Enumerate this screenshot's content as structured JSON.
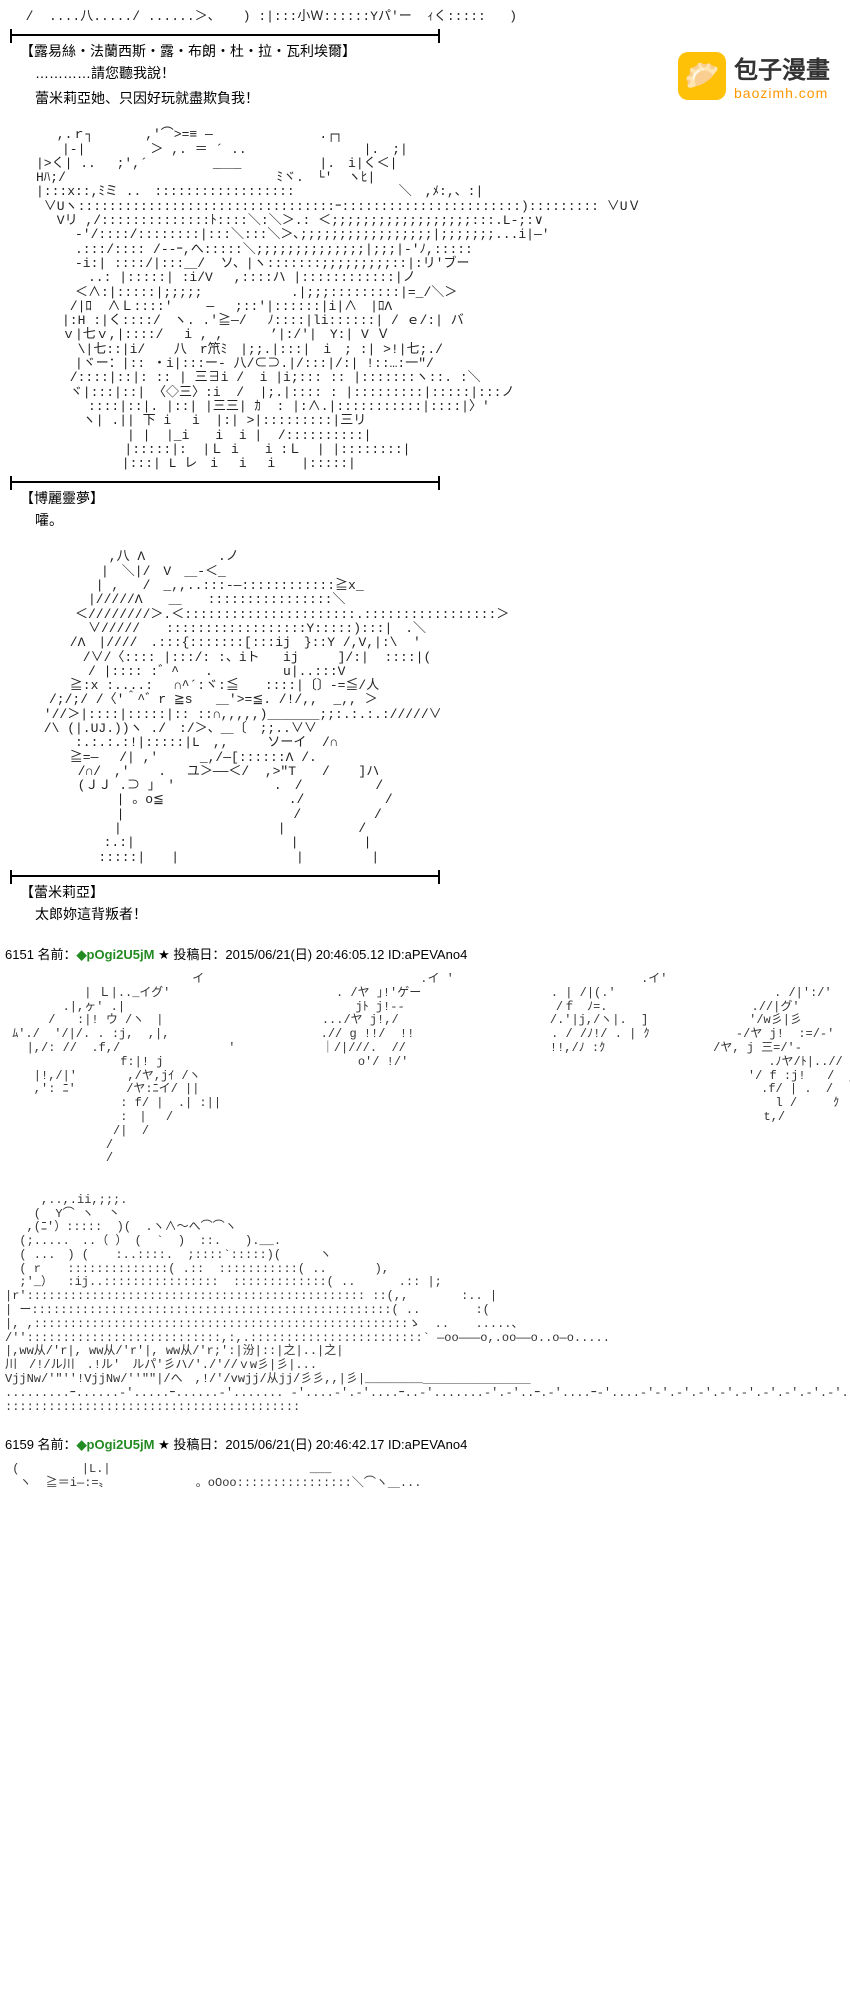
{
  "watermark": {
    "title": "包子漫畫",
    "subtitle": "baozimh.com",
    "icon": "🥟"
  },
  "panels": [
    {
      "ascii_top": "  /  ....八...../ ......＞、　  ) :|:::小Ｗ::::::Yパ'ー  ｨく:::::   )",
      "character": "【露易絲・法蘭西斯・露・布朗・杜・拉・瓦利埃爾】",
      "lines": [
        "…………請您聽我說！",
        "蕾米莉亞她、只因好玩就盡欺負我！"
      ]
    },
    {
      "ascii": "　　　 ,.ｒ┐　　　　,'⌒>=≡ ―　　　　 　　　 .┌┐\n　　　　|-|　　　　　＞ ,. ＝ ´ ..　　　　　　　　　|.　;|\n　　|>く| .. 　;',´　　　　　_＿_　　　　　　|.　i|く＜|\n　　Hﾊ;/　　　　　　　　　　　　　　　  ﾐヾ.　└'  ヽﾋ|\n　　|:::x::,ﾐミ ..　::::::::::::::::::　　　　　　　　＼　,ﾒ:,、:|\n　　 ∨Uヽ:::::::::::::::::::::::::::::::::ｰ:::::::::::::::::::::::)::::::::: ∨UＶ\n　　　 Vリ ,/::::::::::::::ﾄ::::＼:＼＞.: ＜;;;;;;;;;;;;;;;;;;:::.L-;:∨\n　　　　　-'/::::/::::::::|:::＼:::＼＞､;;;;;;;;;;;;;;;;;|;;;;;;;...i|―'\n　　　　　.:::/:::: /--ｰ,へ:::::＼;;;;;;;;;;;;;;|;;;|-'ﾉ,::::: \n　　　　　-i:| ::::/|:::＿/  ソ、|ヽ:::::::;;;;;;;;;::|:リ'ブー\n　　　　　　..: |:::::| :i/V　 ,::::ハ |::::::::::::|ノ\n　　　　　＜∧:|:::::|;;;;;　　 　 　　 .|;;;:::::::::|=_/＼＞\n　　　　 /|ﾛ  ∧Ｌ::::'　　 ―　 ;::'|::::::|i|∧　|ﾛΛ\n　　　　|:H :|く::::/　ヽ. .'≧―/　 ﾉ::::|li::::::| / ｅ/:| バ\n　　　　ｖ|七ｖ,|::::/　 i , ,　　　 ’|:/'|　Y:| V Ｖ\n　　 　　 \\|七::|i/ 　 八　r笊ﾐ　|;;.|:::|　i　; :| >!|七;./\n　　　　　|ヾー：|:: ・i|:::ー- 八/⊂⊃.|/:::|/:| !::…:一\"/\n　　　　 /::::|::|: :: | 三∃i /  i |i;::: :: |:::::::ヽ::. :＼\n　　　　 ヾ|:::|::| 〈◇三〉:i  /  |;.|:::: : |:::::::::|:::::|:::ノ\n　　　　　　::::|::|. |::| |三三| ｶ  : |:∧.|:::::::::::|::::|〉'\n　　　　　 ヽ| .|| 下 i　 i  |:| >|:::::::::|三リ\n　　　　　　　　　| |  |_i　　i  i |  /::::::::::|\n　　　　　　 　  |:::::|:  |Ｌ i　　i :Ｌ  | |::::::::|\n　　　　　　　　 |:::| L レ　i　 i 　i　　|:::::|",
      "character": "【博麗靈夢】",
      "lines": [
        "嚯。"
      ]
    },
    {
      "ascii": "　　　　　　　 ,八 Λ　　　　　 .ノ\n　　　　　　　|　＼|/　V　＿-＜_\n　　　　　　 | ,   /　_,,..:::-―::::::::::::≧x_\n　　　　　　|/////Λ　　＿　　::::::::::::::::＼\n　　　　　＜////////＞.＜::::::::::::::::::::::.:::::::::::::::::＞\n　　　　　　∨/////　　::::::::::::::::::Y:::::):::|　.＼\n　　　　 /Λ　|////　.:::{:::::::[:::ij　}::Y /,V,|:\\  '\n　　　　　 /∨/〈:::: |:::/: :、iト   ij     ]/:|  ::::|(\n　　　　　　/ |:::: :゛^　　.         u|..:::V\n　　　　 ≧:x :....:　 ∩^´:ヾ:≦　　::::|〔〕-=≦/人\n　　　/;/;/ /〈'＾^゛r ≧s   ＿'>=≦. /!/,,  _,, ＞\n　　 '//＞|::::|:::::|:: ::∩,,,,,)＿＿＿＿;;:.:.:.://///∨\n　　 /\\ (|.UJ.))ヽ ./　:/＞、＿〔　;;..∨∨\n　　　　　:.:.:.:!|:::::|L　,,　　　ソーイ  /∩\n　　　　 ≧=―　 /| ,'　  　_,/―[::::::Λ /.\n　　　　  /∩/　,' 　 .　 ユ＞――＜/  ,>\"T　　/ 　 ]ハ\n　　　　  (ＪＪ .⊃ ｣　′ 　　　　　　　.　/　　　　 　/\n　　　　　　　  | 。o≦　　　　　　　　　 ./　　　　 　 /\n　　　　　　 　 |　　　　　　　　　　　　　/　　　　 　/\n　　　　　　　　|　　　　　　　　　　　　|　　　　 　/\n　　　　　　  :.:|　　　　　　　　　　　　|　　　　　|\n　　　　　   :::::|　　|　　　　　　　　　|　　　 　 |",
      "character": "【蕾米莉亞】",
      "lines": [
        "太郎妳這背叛者！"
      ]
    }
  ],
  "posts": [
    {
      "num": "6151",
      "name_label": "名前：",
      "trip": "◆pOgi2U5jM",
      "star": "★",
      "date_label": "投稿日：",
      "date": "2015/06/21(日) 20:46:05.12",
      "id_label": "ID:",
      "id": "aPEVAno4",
      "ascii": "                          イ                              .イ '                          .イ'                              .イ'\n           | Ｌ|.._イグ'                       . /ヤ ｣!'ゲー                  . | /|(.'                      . /|':/'　\n        .|,ヶ' .|                                jﾄ j!--                     /ｆ　ﾉ=.                    .//|グ'\n      /   :|! ウ /ヽ　|                      .../ヤ j!,/                     /.'|j,/ヽ|.  ]              '/w彡|彡\n ﾑ'./  '/|/. . :j,  ,|,                     .// g !!/  !!                   . / /ﾉ!/ . | ｸ            -/ヤ j!  :=/-'\n   |,/: //  .f,/               '            ｜/|///.  //                    !!,/ﾉ :ｸ               /ヤ, j 三=/'-\n                f:|! j                           o'/ !/'                                                  .ﾉヤ/ﾄ|..//  ;!'j\n    |!,/|'       ,/ヤ,jｲ /ヽ                                                                            '/ f :j!   /  j!|グ'\n    ,': ﾆ'       /ヤ:ﾆイ/ ||                                                                              .f/ | .  /\n                : f/ |  .| :||                                                                             l /     ｸ\n                :　|　 /                                                                                  t,/\n               /|  /\n              /\n              /\n\n\n     ,..,.ii,;;;.\n    (  Y⌒ ヽ  丶\n   ,(ﾆ'）:::::  )(  .ヽ∧～へ⌒⌒ヽ\n  (;.....　..（ ） (  `  )  ::.　　).__.\n  ( ...　) (　  :..::::.  ;::::`:::::)(  　　ヽ\n  ( r　  ::::::::::::::( .::  :::::::::::( ..   　  ),\n  ;'_）  :ij..::::::::::::::::  :::::::::::::( ..      .:: |;\n|r'::::::::::::::::::::::::::::::::::::::::::::::: ::(,, 　  　 :.. |\n| ー::::::::::::::::::::::::::::::::::::::::::::::::::( ..   　   :(\n|, ,::::::::::::::::::::::::::::::::::::::::::::::::::::ゝ  ..　  .....、\n/'':::::::::::::::::::::::::::,:,.::::::::::::::::::::::::` ―oo―――o,.oo――o..o―o.....\n|,ww从/'r|, ww从/'r'|, ww从/'r;':|汾|::|之|..|之|\n川　/!/ル川　.!ル'　ルパ'彡ハ/'./'//ｖw彡|彡|...\nVjjNw/'\"''!VjjNw/''\"\"|/へ　,!/'/vwjj/从jj/彡彡,,|彡|________＿＿＿＿＿＿＿＿＿\n.........ｰ......-'.....ｰ......-'....... -'....-'.-'....ｰ..-'.......-'.-'..ｰ.-'....ｰ-'....-'-'.-'.-'.-'.-'.-'.-'.-'.-'.-'.-'\n:::::::::::::::::::::::::::::::::::::::::"
    },
    {
      "num": "6159",
      "name_label": "名前：",
      "trip": "◆pOgi2U5jM",
      "star": "★",
      "date_label": "投稿日：",
      "date": "2015/06/21(日) 20:46:42.17",
      "id_label": "ID:",
      "id": "aPEVAno4",
      "ascii": " (　　　　  |L.|　　　　　　　　　　　　　　　　 ___\n  ヽ  ≧＝i―:=〟　　　　 　　　。oOoo::::::::::::::::＼⌒ヽ＿..."
    }
  ],
  "colors": {
    "text": "#000000",
    "trip": "#228b22",
    "watermark_icon_bg": "#ffc107",
    "watermark_sub": "#ff9800",
    "background": "#ffffff"
  }
}
